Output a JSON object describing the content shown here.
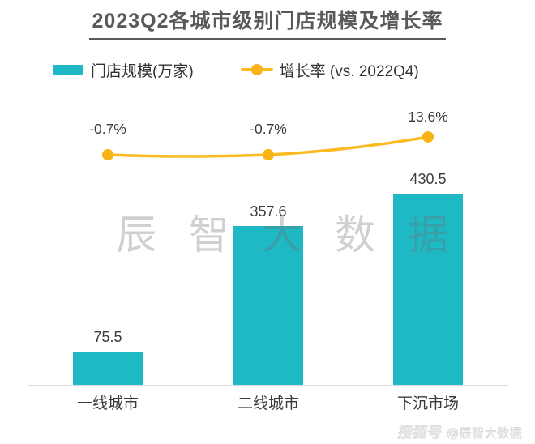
{
  "title": "2023Q2各城市级别门店规模及增长率",
  "legend": {
    "bar": {
      "label": "门店规模(万家)",
      "color": "#1FB9C6"
    },
    "line": {
      "label": "增长率 (vs. 2022Q4)",
      "color": "#FBBA1F"
    }
  },
  "chart_data": {
    "type": "bar",
    "title": "2023Q2各城市级别门店规模及增长率",
    "categories": [
      "一线城市",
      "二线城市",
      "下沉市场"
    ],
    "series": [
      {
        "name": "门店规模(万家)",
        "type": "bar",
        "values": [
          75.5,
          357.6,
          430.5
        ],
        "data_labels": [
          "75.5",
          "357.6",
          "430.5"
        ],
        "color": "#1FB9C6"
      },
      {
        "name": "增长率 (vs. 2022Q4)",
        "type": "line",
        "unit": "%",
        "values": [
          -0.7,
          -0.7,
          13.6
        ],
        "data_labels": [
          "-0.7%",
          "-0.7%",
          "13.6%"
        ],
        "color": "#FBBA1F",
        "marker_color": "#F8B414"
      }
    ],
    "xlabel": "",
    "ylabel": "",
    "grid": false,
    "legend_position": "top"
  },
  "watermarks": {
    "center": "辰智大数据",
    "brand": "搜狐号",
    "account": "@辰智大数据"
  }
}
